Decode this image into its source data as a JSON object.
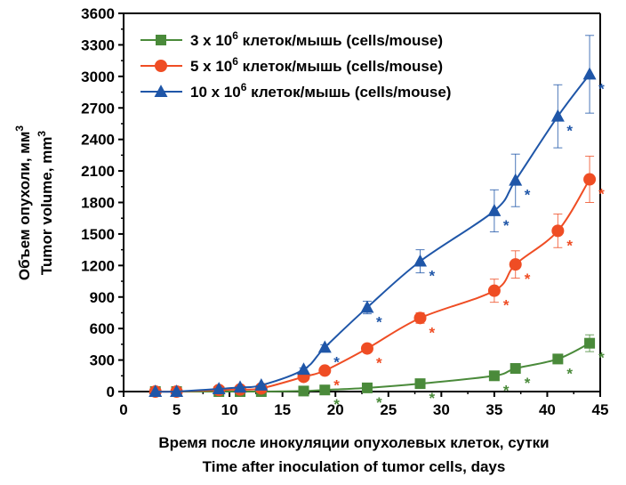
{
  "chart_data": {
    "type": "line",
    "xlabel_lines": [
      "Время после инокуляции опухолевых клеток, сутки",
      "Time after inoculation of tumor cells, days"
    ],
    "ylabel_lines": [
      {
        "text": "Объем опухоли, мм",
        "sup": "3"
      },
      {
        "text": "Tumor volume, mm",
        "sup": "3"
      }
    ],
    "xlim": [
      0,
      45
    ],
    "ylim": [
      0,
      3600
    ],
    "xticks": [
      0,
      5,
      10,
      15,
      20,
      25,
      30,
      35,
      40,
      45
    ],
    "yticks": [
      0,
      300,
      600,
      900,
      1200,
      1500,
      1800,
      2100,
      2400,
      2700,
      3000,
      3300,
      3600
    ],
    "grid": false,
    "legend_position": "top-left",
    "significance_marker": "*",
    "series": [
      {
        "legend_prefix": "3 x 10",
        "legend_sup": "6",
        "legend_suffix": " клеток/мышь (cells/mouse)",
        "color": "#4a8a3a",
        "marker": "square",
        "x": [
          3,
          5,
          9,
          11,
          13,
          17,
          19,
          23,
          28,
          35,
          37,
          41,
          44
        ],
        "y": [
          0,
          0,
          0,
          0,
          0,
          5,
          15,
          35,
          75,
          150,
          220,
          310,
          460
        ],
        "err": [
          0,
          0,
          0,
          0,
          0,
          0,
          5,
          10,
          15,
          20,
          30,
          40,
          80
        ],
        "significant": [
          false,
          false,
          false,
          false,
          false,
          false,
          true,
          true,
          true,
          true,
          true,
          true,
          true
        ]
      },
      {
        "legend_prefix": "5 x 10",
        "legend_sup": "6",
        "legend_suffix": " клеток/мышь (cells/mouse)",
        "color": "#ef4d24",
        "marker": "circle",
        "x": [
          3,
          5,
          9,
          11,
          13,
          17,
          19,
          23,
          28,
          35,
          37,
          41,
          44
        ],
        "y": [
          0,
          0,
          15,
          20,
          30,
          140,
          200,
          410,
          700,
          960,
          1210,
          1530,
          2020
        ],
        "err": [
          0,
          0,
          0,
          0,
          0,
          10,
          15,
          25,
          50,
          110,
          130,
          160,
          220
        ],
        "significant": [
          false,
          false,
          false,
          false,
          false,
          false,
          true,
          true,
          true,
          true,
          true,
          true,
          true
        ]
      },
      {
        "legend_prefix": "10 x 10",
        "legend_sup": "6",
        "legend_suffix": " клеток/мышь (cells/mouse)",
        "color": "#1f56a8",
        "marker": "triangle",
        "x": [
          3,
          5,
          9,
          11,
          13,
          17,
          19,
          23,
          28,
          35,
          37,
          41,
          44
        ],
        "y": [
          0,
          0,
          25,
          40,
          60,
          210,
          420,
          800,
          1240,
          1720,
          2010,
          2620,
          3020
        ],
        "err": [
          0,
          0,
          0,
          0,
          0,
          15,
          25,
          60,
          110,
          200,
          250,
          300,
          370
        ],
        "significant": [
          false,
          false,
          false,
          false,
          false,
          false,
          true,
          true,
          true,
          true,
          true,
          true,
          true
        ]
      }
    ]
  }
}
